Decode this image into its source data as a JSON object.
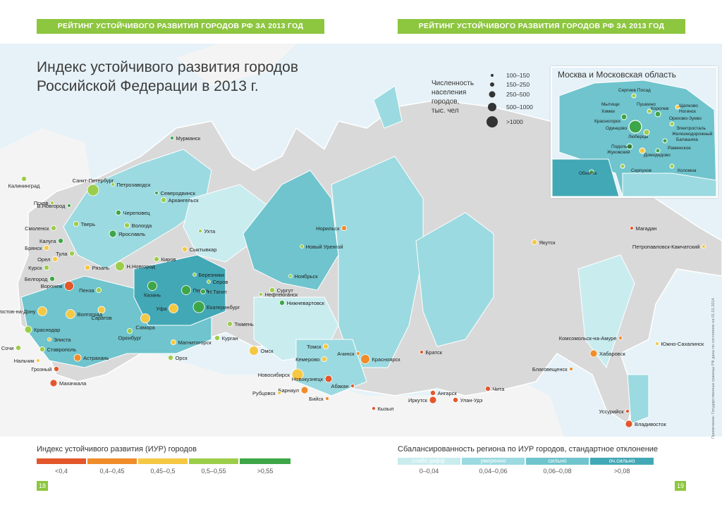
{
  "header": {
    "banner_left": "РЕЙТИНГ УСТОЙЧИВОГО РАЗВИТИЯ ГОРОДОВ РФ ЗА 2013 ГОД",
    "banner_right": "РЕЙТИНГ УСТОЙЧИВОГО РАЗВИТИЯ ГОРОДОВ РФ ЗА 2013 ГОД"
  },
  "title_line1": "Индекс устойчивого развития городов",
  "title_line2": "Российской Федерации в 2013 г.",
  "population_legend": {
    "label_lines": [
      "Численность",
      "населения",
      "городов,",
      "тыс. чел"
    ],
    "sizes": [
      "100–150",
      "150–250",
      "250–500",
      "500–1000",
      ">1000"
    ]
  },
  "inset": {
    "title": "Москва и Московская область",
    "labels": [
      "Сергиев Посад",
      "Щелково",
      "Мытищи",
      "Пушкино",
      "Ногинск",
      "Химки",
      "Королев",
      "Орехово-Зуево",
      "Красногорск",
      "Одинцово",
      "Электросталь",
      "Люберцы",
      "Железнодорожный",
      "Балашиха",
      "Подольск",
      "Раменское",
      "Жуковский",
      "Домодедово",
      "Обнинск",
      "Серпухов",
      "Коломна"
    ]
  },
  "iur_legend": {
    "title": "Индекс устойчивого развития (ИУР) городов",
    "items": [
      {
        "label": "<0,4",
        "color": "#e2572b"
      },
      {
        "label": "0,4–0,45",
        "color": "#f08c2a"
      },
      {
        "label": "0,45–0,5",
        "color": "#f5c844"
      },
      {
        "label": "0,5–0,55",
        "color": "#9ccd4a"
      },
      {
        "label": ">0,55",
        "color": "#3da648"
      }
    ]
  },
  "balance_legend": {
    "title": "Сбалансированность региона по ИУР городов, стандартное отклонение",
    "items": [
      {
        "label": "слабо дифф.",
        "range": "0–0,04",
        "color": "#c9ecef"
      },
      {
        "label": "умеренно",
        "range": "0,04–0,06",
        "color": "#9bdae0"
      },
      {
        "label": "сильно",
        "range": "0,06–0,08",
        "color": "#6fc4cd"
      },
      {
        "label": "оч.сильно",
        "range": ">0,08",
        "color": "#43a8b6"
      }
    ]
  },
  "page_left": "18",
  "page_right": "19",
  "side_note": "Примечание: Государственные границы РФ даны по состоянию на 01.01.2014.",
  "cities": [
    {
      "name": "Мурманск",
      "color": "#3da648",
      "size": 1
    },
    {
      "name": "Санкт-Петербург",
      "color": "#9ccd4a",
      "size": 5
    },
    {
      "name": "Петрозаводск",
      "color": "#9ccd4a",
      "size": 1
    },
    {
      "name": "Северодвинск",
      "color": "#3da648",
      "size": 1
    },
    {
      "name": "Архангельск",
      "color": "#9ccd4a",
      "size": 2
    },
    {
      "name": "Калининград",
      "color": "#9ccd4a",
      "size": 2
    },
    {
      "name": "Псков",
      "color": "#9ccd4a",
      "size": 1
    },
    {
      "name": "В.Новгород",
      "color": "#3da648",
      "size": 1
    },
    {
      "name": "Череповец",
      "color": "#3da648",
      "size": 2
    },
    {
      "name": "Вологда",
      "color": "#9ccd4a",
      "size": 2
    },
    {
      "name": "Смоленск",
      "color": "#9ccd4a",
      "size": 2
    },
    {
      "name": "Тверь",
      "color": "#9ccd4a",
      "size": 2
    },
    {
      "name": "Ярославль",
      "color": "#3da648",
      "size": 3
    },
    {
      "name": "Калуга",
      "color": "#3da648",
      "size": 2
    },
    {
      "name": "Брянск",
      "color": "#f5c844",
      "size": 2
    },
    {
      "name": "Тула",
      "color": "#9ccd4a",
      "size": 2
    },
    {
      "name": "Н.Новгород",
      "color": "#9ccd4a",
      "size": 4
    },
    {
      "name": "Орел",
      "color": "#f5c844",
      "size": 2
    },
    {
      "name": "Рязань",
      "color": "#f5c844",
      "size": 2
    },
    {
      "name": "Курск",
      "color": "#9ccd4a",
      "size": 2
    },
    {
      "name": "Белгород",
      "color": "#3da648",
      "size": 2
    },
    {
      "name": "Киров",
      "color": "#9ccd4a",
      "size": 2
    },
    {
      "name": "Ухта",
      "color": "#9ccd4a",
      "size": 1
    },
    {
      "name": "Сыктывкар",
      "color": "#f5c844",
      "size": 2
    },
    {
      "name": "Воронеж",
      "color": "#e2572b",
      "size": 4
    },
    {
      "name": "Пенза",
      "color": "#9ccd4a",
      "size": 2
    },
    {
      "name": "Саратов",
      "color": "#f5c844",
      "size": 3
    },
    {
      "name": "Казань",
      "color": "#3da648",
      "size": 4
    },
    {
      "name": "Пермь",
      "color": "#3da648",
      "size": 4
    },
    {
      "name": "Березники",
      "color": "#9ccd4a",
      "size": 1
    },
    {
      "name": "Серов",
      "color": "#9ccd4a",
      "size": 1
    },
    {
      "name": "Н.Тагил",
      "color": "#3da648",
      "size": 2
    },
    {
      "name": "Нефтеюганск",
      "color": "#9ccd4a",
      "size": 1
    },
    {
      "name": "Сургут",
      "color": "#9ccd4a",
      "size": 2
    },
    {
      "name": "Нижневартовск",
      "color": "#3da648",
      "size": 2
    },
    {
      "name": "Ноябрьск",
      "color": "#9ccd4a",
      "size": 1
    },
    {
      "name": "Новый Уренгой",
      "color": "#9ccd4a",
      "size": 1
    },
    {
      "name": "Норильск",
      "color": "#f08c2a",
      "size": 2
    },
    {
      "name": "Ростов-на-Дону",
      "color": "#f5c844",
      "size": 4
    },
    {
      "name": "Волгоград",
      "color": "#f5c844",
      "size": 4
    },
    {
      "name": "Уфа",
      "color": "#f5c844",
      "size": 4
    },
    {
      "name": "Екатеринбург",
      "color": "#3da648",
      "size": 5
    },
    {
      "name": "Самара",
      "color": "#f5c844",
      "size": 4
    },
    {
      "name": "Оренбург",
      "color": "#9ccd4a",
      "size": 2
    },
    {
      "name": "Тюмень",
      "color": "#9ccd4a",
      "size": 2
    },
    {
      "name": "Краснодар",
      "color": "#9ccd4a",
      "size": 3
    },
    {
      "name": "Курган",
      "color": "#9ccd4a",
      "size": 2
    },
    {
      "name": "Магнитогорск",
      "color": "#f5c844",
      "size": 2
    },
    {
      "name": "Орск",
      "color": "#9ccd4a",
      "size": 2
    },
    {
      "name": "Элиста",
      "color": "#f5c844",
      "size": 1
    },
    {
      "name": "Ставрополь",
      "color": "#9ccd4a",
      "size": 2
    },
    {
      "name": "Сочи",
      "color": "#9ccd4a",
      "size": 2
    },
    {
      "name": "Астрахань",
      "color": "#f08c2a",
      "size": 3
    },
    {
      "name": "Нальчик",
      "color": "#f5c844",
      "size": 1
    },
    {
      "name": "Грозный",
      "color": "#e2572b",
      "size": 2
    },
    {
      "name": "Махачкала",
      "color": "#e2572b",
      "size": 3
    },
    {
      "name": "Омск",
      "color": "#f5c844",
      "size": 4
    },
    {
      "name": "Томск",
      "color": "#f5c844",
      "size": 2
    },
    {
      "name": "Кемерово",
      "color": "#f5c844",
      "size": 2
    },
    {
      "name": "Ачинск",
      "color": "#f08c2a",
      "size": 1
    },
    {
      "name": "Новосибирск",
      "color": "#f5c844",
      "size": 5
    },
    {
      "name": "Новокузнецк",
      "color": "#e2572b",
      "size": 3
    },
    {
      "name": "Барнаул",
      "color": "#f08c2a",
      "size": 3
    },
    {
      "name": "Рубцовск",
      "color": "#f5c844",
      "size": 1
    },
    {
      "name": "Бийск",
      "color": "#f08c2a",
      "size": 1
    },
    {
      "name": "Абакан",
      "color": "#e2572b",
      "size": 1
    },
    {
      "name": "Красноярск",
      "color": "#f08c2a",
      "size": 4
    },
    {
      "name": "Кызыл",
      "color": "#e2572b",
      "size": 1
    },
    {
      "name": "Братск",
      "color": "#e2572b",
      "size": 1
    },
    {
      "name": "Ангарск",
      "color": "#e2572b",
      "size": 2
    },
    {
      "name": "Иркутск",
      "color": "#e2572b",
      "size": 3
    },
    {
      "name": "Улан-Удэ",
      "color": "#e2572b",
      "size": 2
    },
    {
      "name": "Чита",
      "color": "#e2572b",
      "size": 2
    },
    {
      "name": "Якутск",
      "color": "#f5c844",
      "size": 2
    },
    {
      "name": "Магадан",
      "color": "#e2572b",
      "size": 1
    },
    {
      "name": "Петропавловск-Камчатский",
      "color": "#f5c844",
      "size": 1
    },
    {
      "name": "Комсомольск-на-Амуре",
      "color": "#f08c2a",
      "size": 1
    },
    {
      "name": "Южно-Сахалинск",
      "color": "#f5c844",
      "size": 1
    },
    {
      "name": "Хабаровск",
      "color": "#f08c2a",
      "size": 3
    },
    {
      "name": "Благовещенск",
      "color": "#f08c2a",
      "size": 1
    },
    {
      "name": "Уссурийск",
      "color": "#e2572b",
      "size": 1
    },
    {
      "name": "Владивосток",
      "color": "#e2572b",
      "size": 3
    }
  ]
}
